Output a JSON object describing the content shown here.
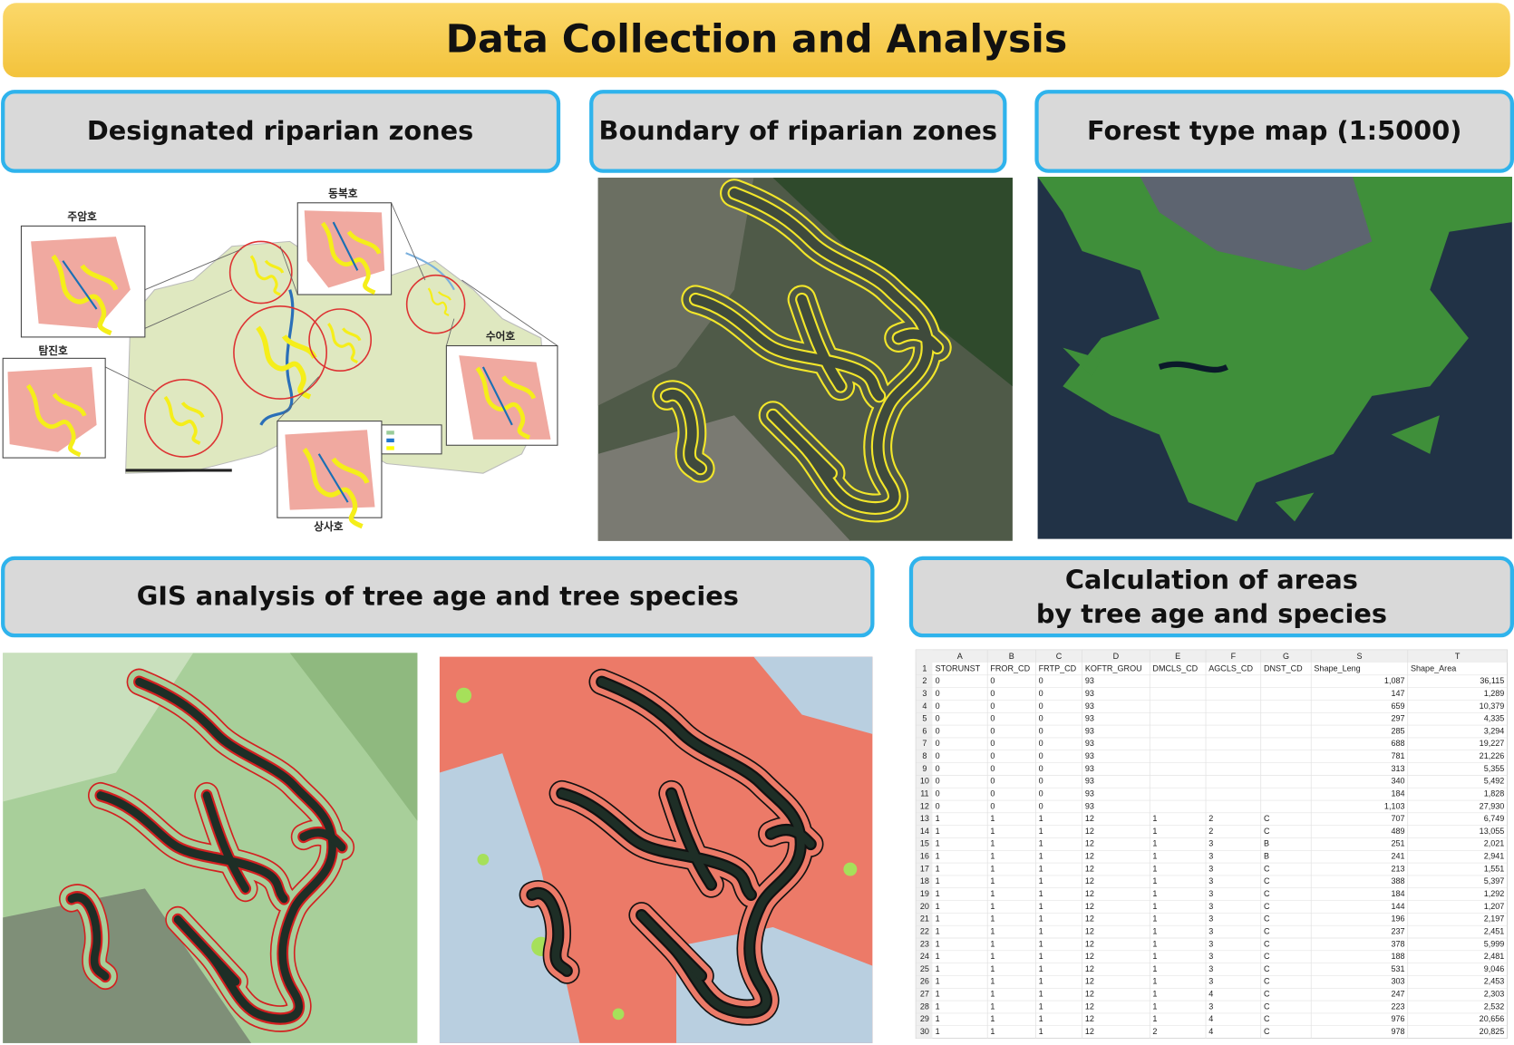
{
  "header": {
    "title": "Data Collection and Analysis"
  },
  "panels": [
    {
      "title": "Designated riparian zones"
    },
    {
      "title": "Boundary of riparian zones"
    },
    {
      "title": "Forest type map (1:5000)"
    },
    {
      "title": "GIS analysis of tree age and tree species"
    },
    {
      "title_lines": [
        "Calculation of areas",
        "by tree age and species"
      ]
    }
  ],
  "map_labels": [
    "주암호",
    "동복호",
    "탐진호",
    "수어호",
    "상사호"
  ],
  "table": {
    "columns": [
      "A",
      "B",
      "C",
      "D",
      "E",
      "F",
      "G",
      "S",
      "T"
    ],
    "rows": [
      [
        "1",
        "STORUNST",
        "FROR_CD",
        "FRTP_CD",
        "KOFTR_GROU",
        "DMCLS_CD",
        "AGCLS_CD",
        "DNST_CD",
        "Shape_Leng",
        "Shape_Area"
      ],
      [
        "2",
        "0",
        "0",
        "0",
        "93",
        null,
        null,
        null,
        "1,087",
        "36,115"
      ],
      [
        "3",
        "0",
        "0",
        "0",
        "93",
        null,
        null,
        null,
        "147",
        "1,289"
      ],
      [
        "4",
        "0",
        "0",
        "0",
        "93",
        null,
        null,
        null,
        "659",
        "10,379"
      ],
      [
        "5",
        "0",
        "0",
        "0",
        "93",
        null,
        null,
        null,
        "297",
        "4,335"
      ],
      [
        "6",
        "0",
        "0",
        "0",
        "93",
        null,
        null,
        null,
        "285",
        "3,294"
      ],
      [
        "7",
        "0",
        "0",
        "0",
        "93",
        null,
        null,
        null,
        "688",
        "19,227"
      ],
      [
        "8",
        "0",
        "0",
        "0",
        "93",
        null,
        null,
        null,
        "781",
        "21,226"
      ],
      [
        "9",
        "0",
        "0",
        "0",
        "93",
        null,
        null,
        null,
        "313",
        "5,355"
      ],
      [
        "10",
        "0",
        "0",
        "0",
        "93",
        null,
        null,
        null,
        "340",
        "5,492"
      ],
      [
        "11",
        "0",
        "0",
        "0",
        "93",
        null,
        null,
        null,
        "184",
        "1,828"
      ],
      [
        "12",
        "0",
        "0",
        "0",
        "93",
        null,
        null,
        null,
        "1,103",
        "27,930"
      ],
      [
        "13",
        "1",
        "1",
        "1",
        "12",
        "1",
        "2",
        "C",
        "707",
        "6,749"
      ],
      [
        "14",
        "1",
        "1",
        "1",
        "12",
        "1",
        "2",
        "C",
        "489",
        "13,055"
      ],
      [
        "15",
        "1",
        "1",
        "1",
        "12",
        "1",
        "3",
        "B",
        "251",
        "2,021"
      ],
      [
        "16",
        "1",
        "1",
        "1",
        "12",
        "1",
        "3",
        "B",
        "241",
        "2,941"
      ],
      [
        "17",
        "1",
        "1",
        "1",
        "12",
        "1",
        "3",
        "C",
        "213",
        "1,551"
      ],
      [
        "18",
        "1",
        "1",
        "1",
        "12",
        "1",
        "3",
        "C",
        "388",
        "5,397"
      ],
      [
        "19",
        "1",
        "1",
        "1",
        "12",
        "1",
        "3",
        "C",
        "184",
        "1,292"
      ],
      [
        "20",
        "1",
        "1",
        "1",
        "12",
        "1",
        "3",
        "C",
        "144",
        "1,207"
      ],
      [
        "21",
        "1",
        "1",
        "1",
        "12",
        "1",
        "3",
        "C",
        "196",
        "2,197"
      ],
      [
        "22",
        "1",
        "1",
        "1",
        "12",
        "1",
        "3",
        "C",
        "237",
        "2,451"
      ],
      [
        "23",
        "1",
        "1",
        "1",
        "12",
        "1",
        "3",
        "C",
        "378",
        "5,999"
      ],
      [
        "24",
        "1",
        "1",
        "1",
        "12",
        "1",
        "3",
        "C",
        "188",
        "2,481"
      ],
      [
        "25",
        "1",
        "1",
        "1",
        "12",
        "1",
        "3",
        "C",
        "531",
        "9,046"
      ],
      [
        "26",
        "1",
        "1",
        "1",
        "12",
        "1",
        "3",
        "C",
        "303",
        "2,453"
      ],
      [
        "27",
        "1",
        "1",
        "1",
        "12",
        "1",
        "4",
        "C",
        "247",
        "2,303"
      ],
      [
        "28",
        "1",
        "1",
        "1",
        "12",
        "1",
        "3",
        "C",
        "223",
        "2,532"
      ],
      [
        "29",
        "1",
        "1",
        "1",
        "12",
        "1",
        "4",
        "C",
        "976",
        "20,656"
      ],
      [
        "30",
        "1",
        "1",
        "1",
        "12",
        "2",
        "4",
        "C",
        "978",
        "20,825"
      ]
    ]
  }
}
